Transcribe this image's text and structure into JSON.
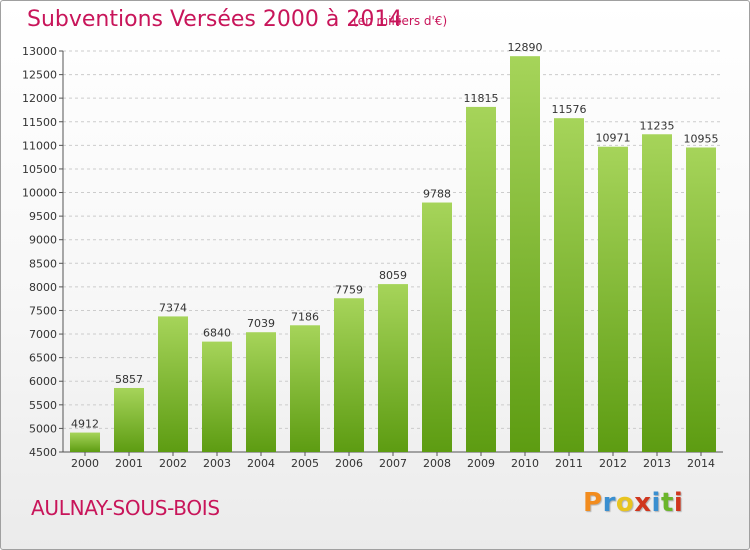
{
  "title": "Subventions Versées 2000 à 2014",
  "subtitle": "(en milliers d'€)",
  "location": "AULNAY-SOUS-BOIS",
  "logo": {
    "parts": [
      "P",
      "r",
      "o",
      "x",
      "i",
      "t",
      "i"
    ]
  },
  "colors": {
    "title": "#c8155a",
    "bar_top": "#a6d45a",
    "bar_bottom": "#5d9c12",
    "grid": "#cccccc"
  },
  "chart_data": {
    "type": "bar",
    "title": "Subventions Versées 2000 à 2014",
    "subtitle": "(en milliers d'€)",
    "xlabel": "",
    "ylabel": "",
    "categories": [
      "2000",
      "2001",
      "2002",
      "2003",
      "2004",
      "2005",
      "2006",
      "2007",
      "2008",
      "2009",
      "2010",
      "2011",
      "2012",
      "2013",
      "2014"
    ],
    "values": [
      4912,
      5857,
      7374,
      6840,
      7039,
      7186,
      7759,
      8059,
      9788,
      11815,
      12890,
      11576,
      10971,
      11235,
      10955
    ],
    "ylim": [
      4500,
      13000
    ],
    "ytick_step": 500,
    "grid": true,
    "data_labels": true
  }
}
